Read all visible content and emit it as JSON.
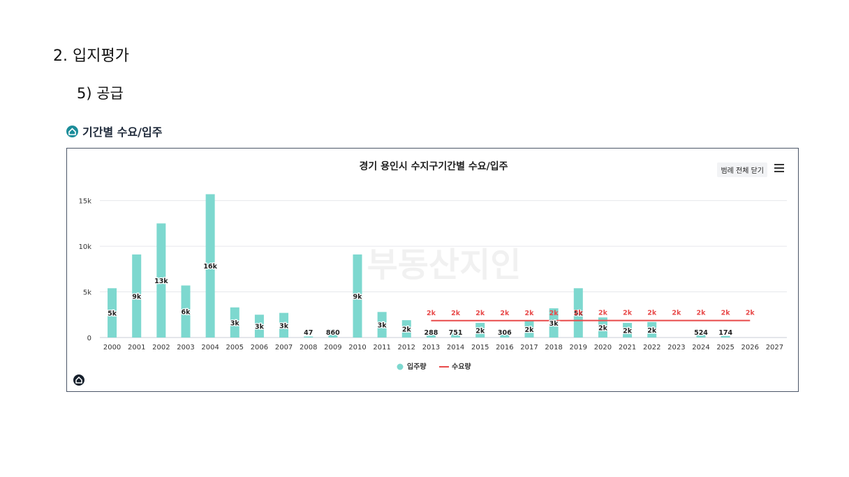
{
  "page": {
    "heading": "2. 입지평가",
    "subheading": "5) 공급",
    "section_title": "기간별 수요/입주"
  },
  "toolbar": {
    "legend_toggle_label": "범례 전체 닫기",
    "menu_icon": "hamburger-menu-icon",
    "logo_icon": "home-logo-icon"
  },
  "watermark": "부동산지인",
  "chart_data": {
    "type": "bar",
    "title": "경기 용인시 수지구기간별 수요/입주",
    "xlabel": "",
    "ylabel": "",
    "ylim": [
      0,
      16500
    ],
    "yticks": [
      0,
      5000,
      10000,
      15000
    ],
    "ytick_labels": [
      "0",
      "5k",
      "10k",
      "15k"
    ],
    "grid": true,
    "legend_position": "bottom-center",
    "categories": [
      "2000",
      "2001",
      "2002",
      "2003",
      "2004",
      "2005",
      "2006",
      "2007",
      "2008",
      "2009",
      "2010",
      "2011",
      "2012",
      "2013",
      "2014",
      "2015",
      "2016",
      "2017",
      "2018",
      "2019",
      "2020",
      "2021",
      "2022",
      "2023",
      "2024",
      "2025",
      "2026",
      "2027"
    ],
    "series": [
      {
        "name": "입주량",
        "type": "bar",
        "color": "#7dd8cf",
        "values": [
          5400,
          9100,
          12500,
          5700,
          15700,
          3300,
          2500,
          2700,
          47,
          860,
          9100,
          2800,
          1900,
          288,
          751,
          1600,
          306,
          1800,
          3200,
          5400,
          2200,
          1600,
          1700,
          0,
          524,
          174,
          0,
          0
        ],
        "labels": [
          "5k",
          "9k",
          "13k",
          "6k",
          "16k",
          "3k",
          "3k",
          "3k",
          "47",
          "860",
          "9k",
          "3k",
          "2k",
          "288",
          "751",
          "2k",
          "306",
          "2k",
          "3k",
          "5k",
          "2k",
          "2k",
          "2k",
          "",
          "524",
          "174",
          "",
          ""
        ]
      },
      {
        "name": "수요량",
        "type": "line",
        "color": "#e84a4a",
        "values": [
          null,
          null,
          null,
          null,
          null,
          null,
          null,
          null,
          null,
          null,
          null,
          null,
          null,
          1850,
          1850,
          1850,
          1850,
          1850,
          1850,
          1860,
          1860,
          1860,
          1860,
          1860,
          1860,
          1860,
          1860,
          null
        ],
        "labels": [
          "",
          "",
          "",
          "",
          "",
          "",
          "",
          "",
          "",
          "",
          "",
          "",
          "",
          "2k",
          "2k",
          "2k",
          "2k",
          "2k",
          "2k",
          "2k",
          "2k",
          "2k",
          "2k",
          "2k",
          "2k",
          "2k",
          "2k",
          ""
        ]
      }
    ]
  }
}
